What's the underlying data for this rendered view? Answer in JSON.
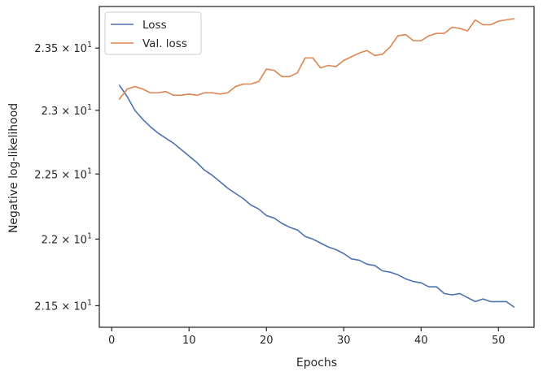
{
  "chart_data": {
    "type": "line",
    "title": "",
    "xlabel": "Epochs",
    "ylabel": "Negative log-likelihood",
    "xlim": [
      -1.6,
      54.6
    ],
    "ylim": [
      21.34,
      23.84
    ],
    "yscale": "log",
    "grid": false,
    "legend_position": "top-left",
    "x_ticks": [
      0,
      10,
      20,
      30,
      40,
      50
    ],
    "y_ticks": [
      {
        "value": 21.5,
        "mantissa": "2.15",
        "base": "10",
        "exp": "1"
      },
      {
        "value": 22.0,
        "mantissa": "2.2",
        "base": "10",
        "exp": "1"
      },
      {
        "value": 22.5,
        "mantissa": "2.25",
        "base": "10",
        "exp": "1"
      },
      {
        "value": 23.0,
        "mantissa": "2.3",
        "base": "10",
        "exp": "1"
      },
      {
        "value": 23.5,
        "mantissa": "2.35",
        "base": "10",
        "exp": "1"
      }
    ],
    "times_symbol": "×",
    "x": [
      1,
      2,
      3,
      4,
      5,
      6,
      7,
      8,
      9,
      10,
      11,
      12,
      13,
      14,
      15,
      16,
      17,
      18,
      19,
      20,
      21,
      22,
      23,
      24,
      25,
      26,
      27,
      28,
      29,
      30,
      31,
      32,
      33,
      34,
      35,
      36,
      37,
      38,
      39,
      40,
      41,
      42,
      43,
      44,
      45,
      46,
      47,
      48,
      49,
      50,
      51,
      52
    ],
    "series": [
      {
        "name": "Loss",
        "color": "#4c72b0",
        "values": [
          23.2,
          23.11,
          23.0,
          22.93,
          22.87,
          22.82,
          22.78,
          22.74,
          22.69,
          22.64,
          22.59,
          22.53,
          22.49,
          22.44,
          22.39,
          22.35,
          22.31,
          22.26,
          22.23,
          22.18,
          22.16,
          22.12,
          22.09,
          22.07,
          22.02,
          22.0,
          21.97,
          21.94,
          21.92,
          21.89,
          21.85,
          21.84,
          21.81,
          21.8,
          21.76,
          21.75,
          21.73,
          21.7,
          21.68,
          21.67,
          21.64,
          21.64,
          21.59,
          21.58,
          21.59,
          21.56,
          21.53,
          21.55,
          21.53,
          21.53,
          21.53,
          21.49
        ]
      },
      {
        "name": "Val. loss",
        "color": "#dd8452",
        "values": [
          23.09,
          23.17,
          23.19,
          23.17,
          23.14,
          23.14,
          23.15,
          23.12,
          23.12,
          23.13,
          23.12,
          23.14,
          23.14,
          23.13,
          23.14,
          23.19,
          23.21,
          23.21,
          23.23,
          23.33,
          23.32,
          23.27,
          23.27,
          23.3,
          23.42,
          23.42,
          23.34,
          23.36,
          23.35,
          23.4,
          23.43,
          23.46,
          23.48,
          23.44,
          23.45,
          23.51,
          23.6,
          23.61,
          23.56,
          23.56,
          23.6,
          23.62,
          23.62,
          23.67,
          23.66,
          23.64,
          23.73,
          23.69,
          23.69,
          23.72,
          23.73,
          23.74
        ]
      }
    ]
  }
}
